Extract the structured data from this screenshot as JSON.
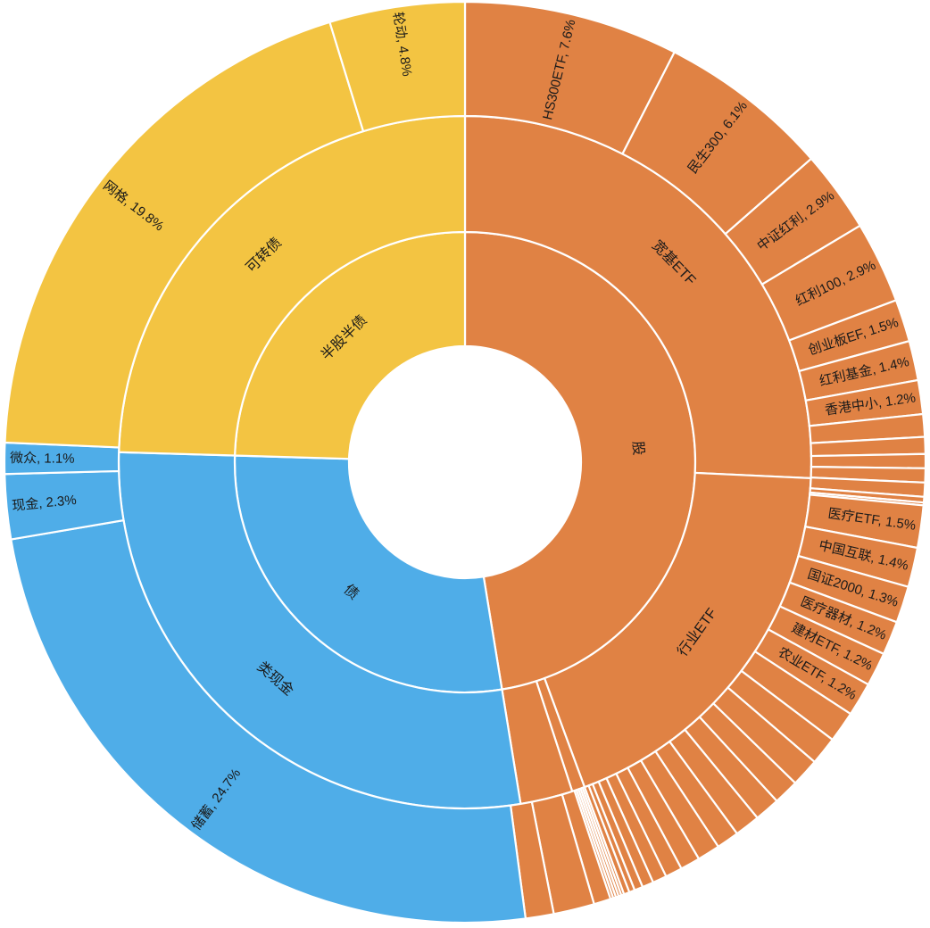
{
  "chart_data": {
    "type": "sunburst",
    "title": "",
    "colors": {
      "股": "#E08244",
      "债": "#4FADE8",
      "半股半债": "#F3C442"
    },
    "inner_ring": [
      {
        "label": "股",
        "value": 47.55
      },
      {
        "label": "债",
        "value": 28.1
      },
      {
        "label": "半股半债",
        "value": 24.6
      }
    ],
    "middle_ring": [
      {
        "label": "宽基ETF",
        "parent": "股",
        "value": 25.8
      },
      {
        "label": "行业ETF",
        "parent": "股",
        "value": 18.7
      },
      {
        "label": "",
        "parent": "股",
        "value": 0.6
      },
      {
        "label": "",
        "parent": "股",
        "value": 2.45
      },
      {
        "label": "类现金",
        "parent": "债",
        "value": 28.1
      },
      {
        "label": "可转债",
        "parent": "半股半债",
        "value": 24.6
      }
    ],
    "outer_ring": [
      {
        "label": "HS300ETF, 7.6%",
        "parent": "宽基ETF",
        "value": 7.6
      },
      {
        "label": "民生300, 6.1%",
        "parent": "宽基ETF",
        "value": 6.1
      },
      {
        "label": "中证红利, 2.9%",
        "parent": "宽基ETF",
        "value": 2.9
      },
      {
        "label": "红利100, 2.9%",
        "parent": "宽基ETF",
        "value": 2.9
      },
      {
        "label": "创业板EF, 1.5%",
        "parent": "宽基ETF",
        "value": 1.5
      },
      {
        "label": "红利基金, 1.4%",
        "parent": "宽基ETF",
        "value": 1.4
      },
      {
        "label": "香港中小, 1.2%",
        "parent": "宽基ETF",
        "value": 1.2
      },
      {
        "label": "",
        "parent": "宽基ETF",
        "value": 0.8
      },
      {
        "label": "",
        "parent": "宽基ETF",
        "value": 0.6
      },
      {
        "label": "",
        "parent": "宽基ETF",
        "value": 0.5
      },
      {
        "label": "",
        "parent": "宽基ETF",
        "value": 0.5
      },
      {
        "label": "",
        "parent": "宽基ETF",
        "value": 0.5
      },
      {
        "label": "",
        "parent": "宽基ETF",
        "value": 0.2
      },
      {
        "label": "",
        "parent": "宽基ETF",
        "value": 0.1
      },
      {
        "label": "医疗ETF, 1.5%",
        "parent": "行业ETF",
        "value": 1.5
      },
      {
        "label": "中国互联, 1.4%",
        "parent": "行业ETF",
        "value": 1.4
      },
      {
        "label": "国证2000, 1.3%",
        "parent": "行业ETF",
        "value": 1.3
      },
      {
        "label": "医疗器材, 1.2%",
        "parent": "行业ETF",
        "value": 1.2
      },
      {
        "label": "建材ETF, 1.2%",
        "parent": "行业ETF",
        "value": 1.2
      },
      {
        "label": "农业ETF, 1.2%",
        "parent": "行业ETF",
        "value": 1.2
      },
      {
        "label": "",
        "parent": "行业ETF",
        "value": 1.1
      },
      {
        "label": "",
        "parent": "行业ETF",
        "value": 1.0
      },
      {
        "label": "",
        "parent": "行业ETF",
        "value": 1.0
      },
      {
        "label": "",
        "parent": "行业ETF",
        "value": 0.9
      },
      {
        "label": "",
        "parent": "行业ETF",
        "value": 0.9
      },
      {
        "label": "",
        "parent": "行业ETF",
        "value": 0.9
      },
      {
        "label": "",
        "parent": "行业ETF",
        "value": 0.8
      },
      {
        "label": "",
        "parent": "行业ETF",
        "value": 0.8
      },
      {
        "label": "",
        "parent": "行业ETF",
        "value": 0.7
      },
      {
        "label": "",
        "parent": "行业ETF",
        "value": 0.6
      },
      {
        "label": "",
        "parent": "行业ETF",
        "value": 0.5
      },
      {
        "label": "",
        "parent": "行业ETF",
        "value": 0.4
      },
      {
        "label": "",
        "parent": "行业ETF",
        "value": 0.3
      },
      {
        "label": "",
        "parent": "行业ETF",
        "value": 0.2
      },
      {
        "label": "",
        "parent": "行业ETF",
        "value": 0.2
      },
      {
        "label": "",
        "parent": "行业ETF",
        "value": 0.1
      },
      {
        "label": "",
        "parent": "行业ETF",
        "value": 0.1
      },
      {
        "label": "",
        "parent": "行业ETF",
        "value": 0.1
      },
      {
        "label": "",
        "parent": "行业ETF",
        "value": 0.1
      },
      {
        "label": "",
        "parent": "行业ETF",
        "value": 0.1
      },
      {
        "label": "",
        "parent": "",
        "value": 0.6
      },
      {
        "label": "",
        "parent": "",
        "value": 1.45
      },
      {
        "label": "",
        "parent": "",
        "value": 1.0
      },
      {
        "label": "储蓄, 24.7%",
        "parent": "类现金",
        "value": 24.7
      },
      {
        "label": "现金, 2.3%",
        "parent": "类现金",
        "value": 2.3
      },
      {
        "label": "微众, 1.1%",
        "parent": "类现金",
        "value": 1.1
      },
      {
        "label": "网格, 19.8%",
        "parent": "可转债",
        "value": 19.8
      },
      {
        "label": "轮动, 4.8%",
        "parent": "可转债",
        "value": 4.8
      }
    ]
  }
}
